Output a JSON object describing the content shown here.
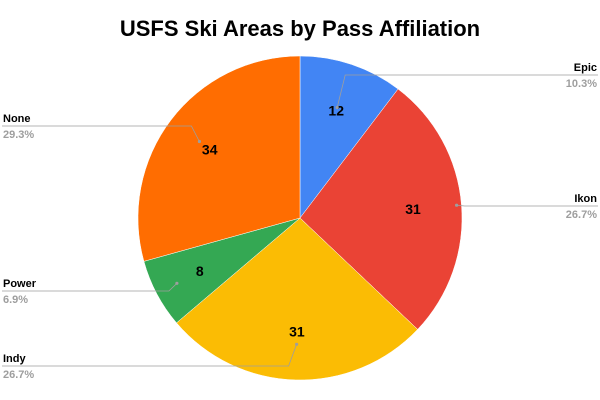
{
  "chart_data": {
    "type": "pie",
    "title": "USFS Ski Areas by Pass Affiliation",
    "start_angle_deg": 0,
    "direction": "clockwise",
    "slices": [
      {
        "label": "Epic",
        "value": 12,
        "percent_label": "10.3%",
        "color": "#4285f4"
      },
      {
        "label": "Ikon",
        "value": 31,
        "percent_label": "26.7%",
        "color": "#ea4335"
      },
      {
        "label": "Indy",
        "value": 31,
        "percent_label": "26.7%",
        "color": "#fbbc04"
      },
      {
        "label": "Power",
        "value": 8,
        "percent_label": "6.9%",
        "color": "#34a853"
      },
      {
        "label": "None",
        "value": 34,
        "percent_label": "29.3%",
        "color": "#ff6d01"
      }
    ]
  }
}
